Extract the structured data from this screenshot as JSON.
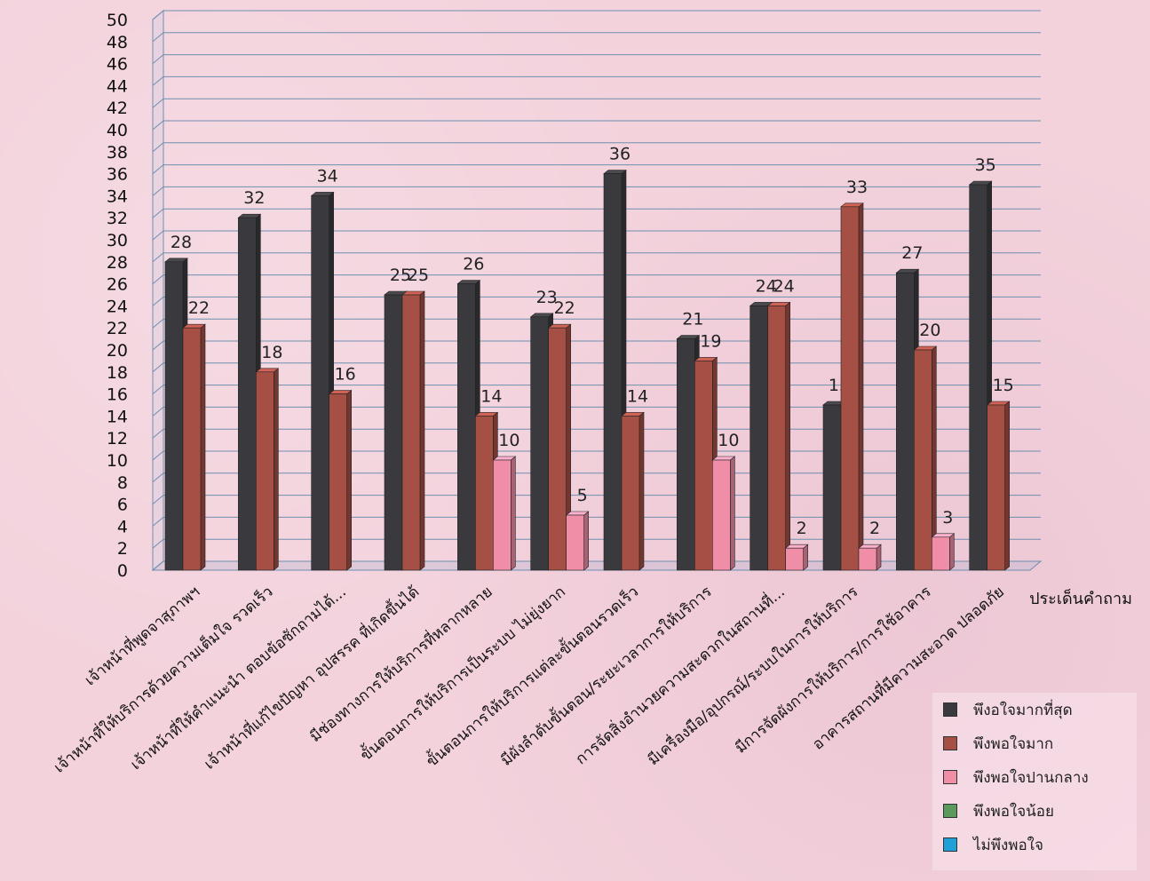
{
  "chart_data": {
    "type": "bar",
    "xlabel": "ประเด็นคำถาม",
    "ylabel": "",
    "ylim": [
      0,
      50
    ],
    "ytick_step": 2,
    "grid": true,
    "legend_position": "bottom-right",
    "categories": [
      "เจ้าหน้าที่พูดจาสุภาพฯ",
      "เจ้าหน้าที่ให้บริการด้วยความเต็มใจ รวดเร็ว",
      "เจ้าหน้าที่ให้คำแนะนำ ตอบข้อซักถามได้...",
      "เจ้าหน้าที่แก้ไขปัญหา อุปสรรค ที่เกิดขึ้นได้",
      "มีช่องทางการให้บริการที่หลากหลาย",
      "ขั้นตอนการให้บริการเป็นระบบ ไม่ยุ่งยาก",
      "ขั้นตอนการให้บริการแต่ละขั้นตอนรวดเร็ว",
      "มีผังลำดับขั้นตอน/ระยะเวลาการให้บริการ",
      "การจัดสิ่งอำนวยความสะดวกในสถานที่...",
      "มีเครื่องมือ/อุปกรณ์/ระบบในการให้บริการ",
      "มีการจัดผังการให้บริการ/การใช้อาคาร",
      "อาคารสถานที่มีความสะอาด ปลอดภัย"
    ],
    "series": [
      {
        "name": "พึงอใจมากที่สุด",
        "color": "#3a3a3e",
        "values": [
          28,
          32,
          34,
          25,
          26,
          23,
          36,
          21,
          24,
          15,
          27,
          35
        ]
      },
      {
        "name": "พึงพอใจมาก",
        "color": "#a64f45",
        "values": [
          22,
          18,
          16,
          25,
          14,
          22,
          14,
          19,
          24,
          33,
          20,
          15
        ]
      },
      {
        "name": "พึงพอใจปานกลาง",
        "color": "#ef8ea6",
        "values": [
          0,
          0,
          0,
          0,
          10,
          5,
          0,
          10,
          2,
          2,
          3,
          0
        ]
      },
      {
        "name": "พึงพอใจน้อย",
        "color": "#5b9a5b",
        "values": [
          0,
          0,
          0,
          0,
          0,
          0,
          0,
          0,
          0,
          0,
          0,
          0
        ]
      },
      {
        "name": "ไม่พึงพอใจ",
        "color": "#1fa0d8",
        "values": [
          0,
          0,
          0,
          0,
          0,
          0,
          0,
          0,
          0,
          0,
          0,
          0
        ]
      }
    ]
  }
}
